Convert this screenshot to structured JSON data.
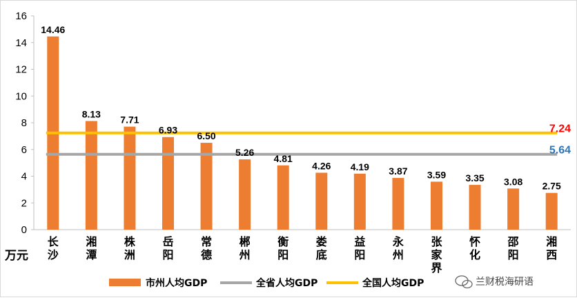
{
  "chart_data": {
    "type": "bar",
    "unit_label": "万元",
    "categories": [
      "长沙",
      "湘潭",
      "株洲",
      "岳阳",
      "常德",
      "郴州",
      "衡阳",
      "娄底",
      "益阳",
      "永州",
      "张家界",
      "怀化",
      "邵阳",
      "湘西"
    ],
    "value_labels": [
      "14.46",
      "8.13",
      "7.71",
      "6.93",
      "6.50",
      "5.26",
      "4.81",
      "4.26",
      "4.19",
      "3.87",
      "3.59",
      "3.35",
      "3.08",
      "2.75"
    ],
    "series": [
      {
        "name": "市州人均GDP",
        "values": [
          14.46,
          8.13,
          7.71,
          6.93,
          6.5,
          5.26,
          4.81,
          4.26,
          4.19,
          3.87,
          3.59,
          3.35,
          3.08,
          2.75
        ],
        "color": "#ed7d31"
      }
    ],
    "reference_lines": [
      {
        "name": "全省人均GDP",
        "value": 5.64,
        "label": "5.64",
        "color": "#a6a6a6",
        "label_color": "#2e75b6"
      },
      {
        "name": "全国人均GDP",
        "value": 7.24,
        "label": "7.24",
        "color": "#ffc000",
        "label_color": "#ff0000"
      }
    ],
    "ylim": [
      0,
      16
    ],
    "yticks": [
      "0",
      "2",
      "4",
      "6",
      "8",
      "10",
      "12",
      "14",
      "16"
    ],
    "legend_position": "bottom",
    "grid": false
  },
  "watermark": "兰财税海研语"
}
